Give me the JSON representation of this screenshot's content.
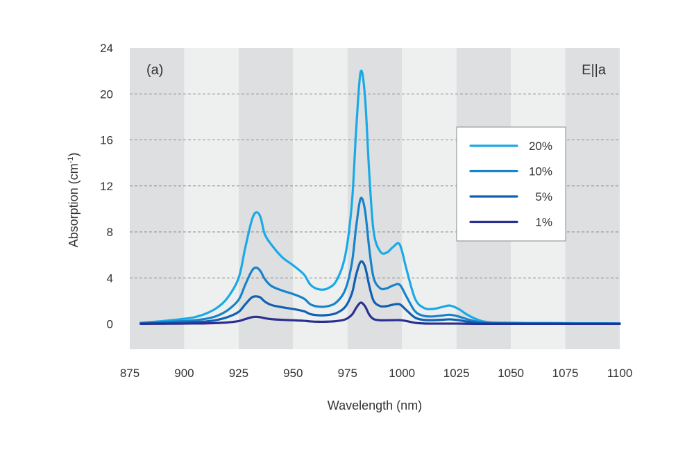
{
  "chart_data": {
    "type": "line",
    "xlabel": "Wavelength (nm)",
    "ylabel_main": "Absorption (cm",
    "ylabel_sup": "-1",
    "ylabel_close": ")",
    "panel_label": "(a)",
    "polarization_label": "E||a",
    "xlim": [
      875,
      1100
    ],
    "ylim": [
      -2.2,
      24
    ],
    "x_ticks": [
      875,
      900,
      925,
      950,
      975,
      1000,
      1025,
      1050,
      1075,
      1100
    ],
    "y_ticks": [
      0,
      4,
      8,
      12,
      16,
      20,
      24
    ],
    "grid": "horizontal dashed",
    "background": "alternating vertical bands",
    "band_colors": [
      "#dedfe0",
      "#eeefef"
    ],
    "legend_position": "upper-right",
    "x": [
      880,
      890,
      900,
      905,
      910,
      915,
      920,
      925,
      928,
      931,
      933,
      935,
      937,
      940,
      945,
      950,
      955,
      958,
      962,
      966,
      970,
      974,
      977,
      979,
      981,
      983,
      985,
      987,
      990,
      993,
      996,
      999,
      1002,
      1006,
      1010,
      1014,
      1018,
      1022,
      1026,
      1030,
      1035,
      1040,
      1050,
      1060,
      1070,
      1080,
      1090,
      1100
    ],
    "series": [
      {
        "name": "20%",
        "color": "#1aa9e6",
        "values": [
          0.1,
          0.25,
          0.45,
          0.6,
          0.9,
          1.4,
          2.3,
          4.0,
          6.6,
          9.0,
          9.7,
          9.3,
          7.8,
          6.9,
          5.8,
          5.1,
          4.3,
          3.4,
          3.0,
          3.1,
          3.8,
          6.0,
          10.5,
          17.0,
          21.9,
          19.8,
          13.0,
          8.0,
          6.3,
          6.2,
          6.7,
          6.9,
          4.8,
          2.2,
          1.4,
          1.3,
          1.45,
          1.6,
          1.3,
          0.8,
          0.35,
          0.15,
          0.1,
          0.08,
          0.08,
          0.06,
          0.06,
          0.05
        ]
      },
      {
        "name": "10%",
        "color": "#1683cc",
        "values": [
          0.05,
          0.15,
          0.25,
          0.32,
          0.45,
          0.7,
          1.2,
          2.1,
          3.4,
          4.6,
          4.9,
          4.6,
          3.9,
          3.3,
          2.9,
          2.6,
          2.2,
          1.7,
          1.5,
          1.55,
          1.9,
          3.0,
          5.3,
          8.5,
          10.9,
          9.9,
          6.5,
          4.0,
          3.1,
          3.1,
          3.35,
          3.4,
          2.4,
          1.1,
          0.7,
          0.65,
          0.72,
          0.8,
          0.65,
          0.4,
          0.18,
          0.08,
          0.05,
          0.04,
          0.04,
          0.03,
          0.03,
          0.03
        ]
      },
      {
        "name": "5%",
        "color": "#1060b0",
        "values": [
          0.03,
          0.08,
          0.12,
          0.16,
          0.22,
          0.35,
          0.6,
          1.05,
          1.7,
          2.3,
          2.4,
          2.3,
          1.95,
          1.65,
          1.45,
          1.3,
          1.1,
          0.85,
          0.75,
          0.78,
          0.95,
          1.5,
          2.65,
          4.3,
          5.4,
          5.0,
          3.3,
          2.0,
          1.55,
          1.55,
          1.68,
          1.7,
          1.2,
          0.55,
          0.35,
          0.33,
          0.36,
          0.4,
          0.33,
          0.2,
          0.09,
          0.04,
          0.03,
          0.02,
          0.02,
          0.02,
          0.02,
          0.02
        ]
      },
      {
        "name": "1%",
        "color": "#2b2f8f",
        "values": [
          0.01,
          0.02,
          0.03,
          0.04,
          0.05,
          0.08,
          0.13,
          0.25,
          0.42,
          0.58,
          0.62,
          0.58,
          0.5,
          0.42,
          0.36,
          0.32,
          0.27,
          0.22,
          0.19,
          0.2,
          0.25,
          0.4,
          0.8,
          1.4,
          1.85,
          1.55,
          0.8,
          0.42,
          0.32,
          0.32,
          0.33,
          0.33,
          0.25,
          0.1,
          0.04,
          0.03,
          0.03,
          0.03,
          0.03,
          0.02,
          0.01,
          0.01,
          0.01,
          0.01,
          0.01,
          0.01,
          0.01,
          0.01
        ]
      }
    ]
  }
}
